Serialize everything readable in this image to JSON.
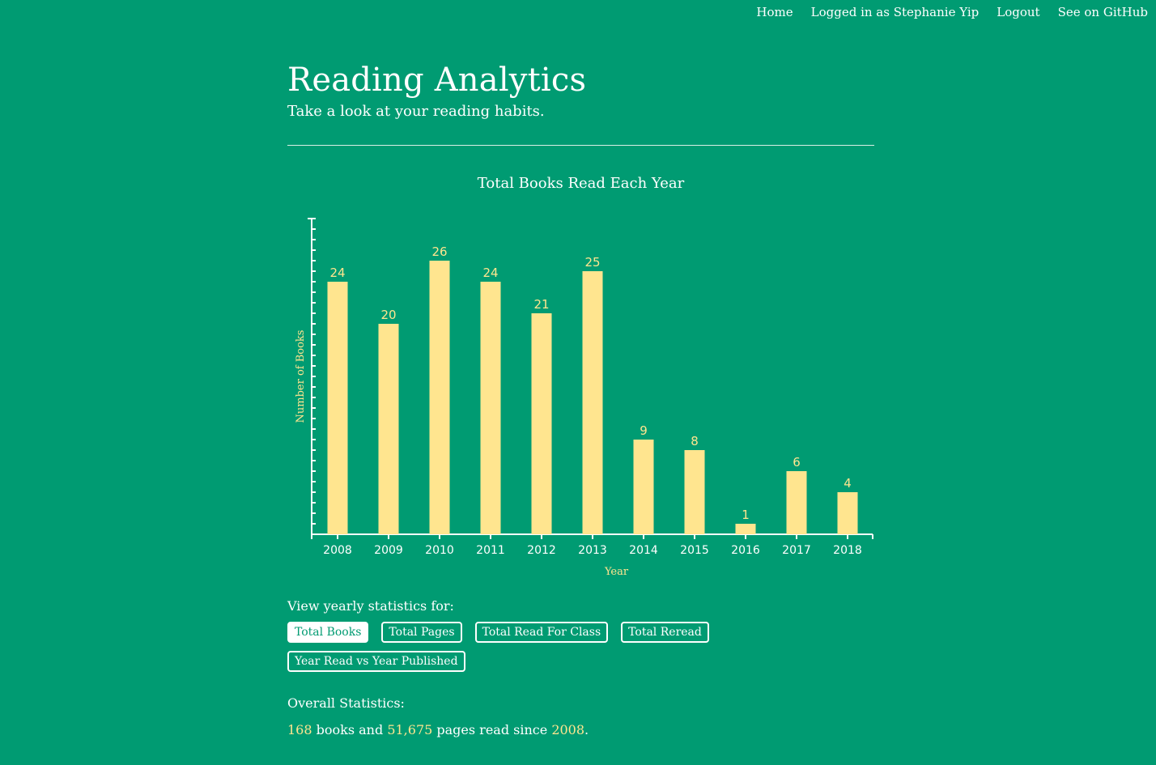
{
  "nav": {
    "home": "Home",
    "user": "Logged in as Stephanie Yip",
    "logout": "Logout",
    "github": "See on GitHub"
  },
  "header": {
    "title": "Reading Analytics",
    "subtitle": "Take a look at your reading habits."
  },
  "chart_data": {
    "type": "bar",
    "title": "Total Books Read Each Year",
    "xlabel": "Year",
    "ylabel": "Number of Books",
    "categories": [
      "2008",
      "2009",
      "2010",
      "2011",
      "2012",
      "2013",
      "2014",
      "2015",
      "2016",
      "2017",
      "2018"
    ],
    "values": [
      24,
      20,
      26,
      24,
      21,
      25,
      9,
      8,
      1,
      6,
      4
    ],
    "ylim": [
      0,
      30
    ],
    "grid": false,
    "bar_color": "#ffe58f",
    "label_color": "#ffe58f"
  },
  "controls": {
    "view_label": "View yearly statistics for:",
    "buttons": [
      "Total Books",
      "Total Pages",
      "Total Read For Class",
      "Total Reread",
      "Year Read vs Year Published"
    ],
    "active": "Total Books"
  },
  "overall": {
    "label": "Overall Statistics:",
    "books": "168",
    "books_text": " books and ",
    "pages": "51,675",
    "pages_text": " pages read since ",
    "since": "2008",
    "end": "."
  },
  "colors": {
    "background": "#009b72",
    "accent": "#ffe58f",
    "text": "#ffffff"
  }
}
